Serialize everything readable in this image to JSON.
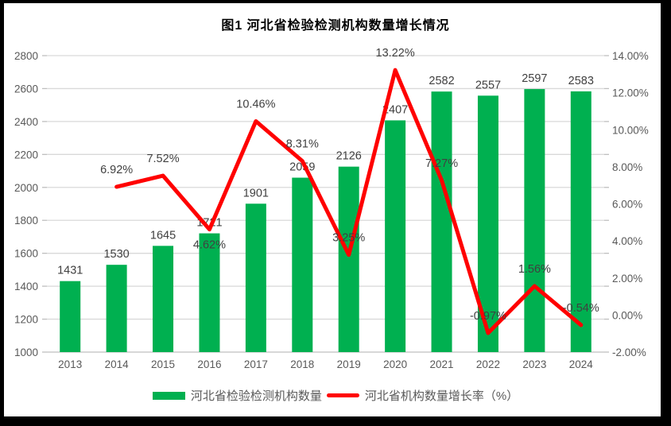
{
  "window": {
    "background": "#ffffff",
    "border_color": "#000000"
  },
  "chart_data": {
    "type": "combo",
    "title": "图1  河北省检验检测机构数量增长情况",
    "categories": [
      "2013",
      "2014",
      "2015",
      "2016",
      "2017",
      "2018",
      "2019",
      "2020",
      "2021",
      "2022",
      "2023",
      "2024"
    ],
    "series": [
      {
        "name": "河北省检验检测机构数量",
        "type": "bar",
        "axis": "left",
        "color": "#00B050",
        "values": [
          1431,
          1530,
          1645,
          1721,
          1901,
          2059,
          2126,
          2407,
          2582,
          2557,
          2597,
          2583
        ],
        "data_labels": [
          "1431",
          "1530",
          "1645",
          "1721",
          "1901",
          "2059",
          "2126",
          "2407",
          "2582",
          "2557",
          "2597",
          "2583"
        ]
      },
      {
        "name": "河北省机构数量增长率（%）",
        "type": "line",
        "axis": "right",
        "color": "#FF0000",
        "values": [
          null,
          6.92,
          7.52,
          4.62,
          10.46,
          8.31,
          3.25,
          13.22,
          7.27,
          -0.97,
          1.56,
          -0.54
        ],
        "data_labels": [
          null,
          "6.92%",
          "7.52%",
          "4.62%",
          "10.46%",
          "8.31%",
          "3.25%",
          "13.22%",
          "7.27%",
          "-0.97%",
          "1.56%",
          "-0.54%"
        ],
        "label_side": [
          null,
          "above",
          "above",
          "below",
          "above",
          "above",
          "above",
          "above",
          "above",
          "above",
          "above",
          "above"
        ]
      }
    ],
    "left_axis": {
      "min": 1000,
      "max": 2800,
      "step": 200,
      "tick_labels": [
        "1000",
        "1200",
        "1400",
        "1600",
        "1800",
        "2000",
        "2200",
        "2400",
        "2600",
        "2800"
      ]
    },
    "right_axis": {
      "min": -2,
      "max": 14,
      "step": 2,
      "tick_labels": [
        "-2.00%",
        "0.00%",
        "2.00%",
        "4.00%",
        "6.00%",
        "8.00%",
        "10.00%",
        "12.00%",
        "14.00%"
      ]
    },
    "grid": true,
    "legend_position": "bottom",
    "colors": {
      "grid": "#D9D9D9",
      "axis_line": "#BFBFBF",
      "axis_text": "#595959",
      "data_label_text": "#404040",
      "title_text": "#000000"
    }
  }
}
